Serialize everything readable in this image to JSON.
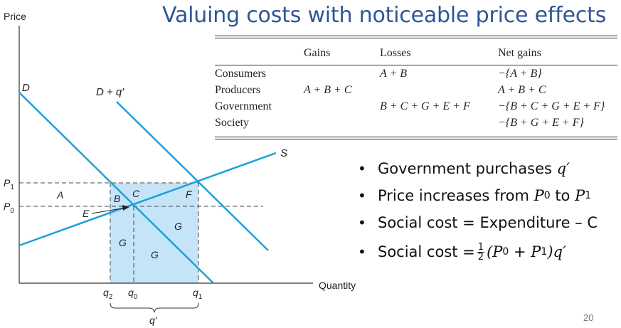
{
  "slide": {
    "title": "Valuing costs with noticeable price effects",
    "page_number": "20"
  },
  "graph": {
    "y_axis_label": "Price",
    "x_axis_label": "Quantity",
    "curves": {
      "demand": "D",
      "shifted_demand": "D + q′",
      "supply": "S"
    },
    "price_labels": {
      "p1_main": "P",
      "p1_sub": "1",
      "p0_main": "P",
      "p0_sub": "0"
    },
    "quantity_labels": {
      "q2_main": "q",
      "q2_sub": "2",
      "q0_main": "q",
      "q0_sub": "0",
      "q1_main": "q",
      "q1_sub": "1",
      "q_prime": "q′"
    },
    "regions": {
      "a": "A",
      "b": "B",
      "c": "C",
      "e": "E",
      "f": "F",
      "g1": "G",
      "g2": "G",
      "g3": "G"
    },
    "colors": {
      "curve": "#1ba1d9",
      "shade": "#c5e4f7",
      "axis": "#333333"
    }
  },
  "table": {
    "headers": [
      "",
      "Gains",
      "Losses",
      "Net gains"
    ],
    "rows": [
      {
        "label": "Consumers",
        "gains": "",
        "losses": "A + B",
        "net": "−{A + B}"
      },
      {
        "label": "Producers",
        "gains": "A + B + C",
        "losses": "",
        "net": "A + B + C"
      },
      {
        "label": "Government",
        "gains": "",
        "losses": "B + C + G + E + F",
        "net": "−{B + C + G + E + F}"
      },
      {
        "label": "Society",
        "gains": "",
        "losses": "",
        "net": "−{B + G + E + F}"
      }
    ]
  },
  "bullets": {
    "b1": {
      "text": "Government purchases ",
      "math": "q′"
    },
    "b2": {
      "text": "Price increases from ",
      "p0": "P",
      "p0_sub": "0",
      "mid": " to ",
      "p1": "P",
      "p1_sub": "1"
    },
    "b3": {
      "text": "Social cost = Expenditure – C"
    },
    "b4": {
      "text": "Social cost =",
      "num": "1",
      "den": "2",
      "expr": "(P",
      "s0": "0",
      "plus": " + P",
      "s1": "1",
      "tail": ")q′"
    }
  }
}
